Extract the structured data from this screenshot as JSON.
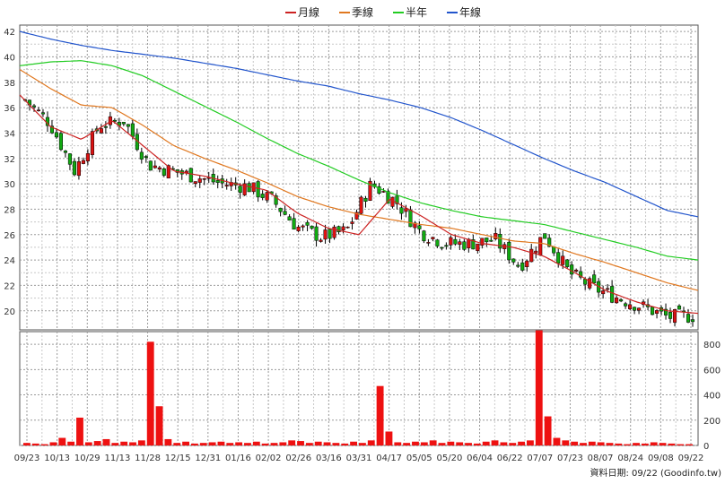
{
  "chart_data": {
    "type": "candlestick",
    "grid": true,
    "legend_position": "top-center",
    "legend": [
      {
        "name": "月線",
        "color": "#cc2222"
      },
      {
        "name": "季線",
        "color": "#e07820"
      },
      {
        "name": "半年",
        "color": "#22cc22"
      },
      {
        "name": "年線",
        "color": "#2255cc"
      }
    ],
    "x_tick_labels": [
      "09/23",
      "10/13",
      "10/29",
      "11/13",
      "11/28",
      "12/15",
      "12/31",
      "01/16",
      "02/02",
      "02/26",
      "03/16",
      "03/31",
      "04/17",
      "05/05",
      "05/20",
      "06/04",
      "06/22",
      "07/07",
      "07/23",
      "08/07",
      "08/24",
      "09/08",
      "09/22"
    ],
    "price_axis": {
      "ylim": [
        18.5,
        42.5
      ],
      "ticks": [
        20,
        22,
        24,
        26,
        28,
        30,
        32,
        34,
        36,
        38,
        40,
        42
      ]
    },
    "volume_axis": {
      "ylim": [
        0,
        900
      ],
      "ticks": [
        0,
        200,
        400,
        600,
        800
      ]
    },
    "ma_lines": {
      "年線": [
        42.0,
        41.4,
        40.9,
        40.5,
        40.2,
        39.9,
        39.5,
        39.1,
        38.6,
        38.1,
        37.7,
        37.1,
        36.6,
        36.0,
        35.2,
        34.2,
        33.1,
        32.0,
        31.0,
        30.1,
        29.0,
        27.9,
        27.4
      ],
      "半年": [
        39.3,
        39.6,
        39.7,
        39.3,
        38.5,
        37.3,
        36.1,
        34.9,
        33.6,
        32.4,
        31.4,
        30.3,
        29.3,
        28.5,
        27.9,
        27.4,
        27.1,
        26.8,
        26.2,
        25.6,
        25.0,
        24.3,
        24.0
      ],
      "季線": [
        39.0,
        37.5,
        36.2,
        36.0,
        34.6,
        33.0,
        32.0,
        31.1,
        30.1,
        29.0,
        28.2,
        27.6,
        27.2,
        26.8,
        26.5,
        26.0,
        25.5,
        25.3,
        24.5,
        23.8,
        23.0,
        22.2,
        21.6
      ],
      "月線": [
        37.0,
        34.5,
        33.5,
        35.0,
        33.0,
        31.0,
        30.6,
        30.0,
        29.5,
        27.7,
        26.5,
        26.0,
        28.8,
        27.5,
        26.0,
        25.3,
        25.0,
        24.3,
        23.0,
        21.6,
        20.7,
        20.0,
        19.8
      ]
    },
    "close_prices": [
      36.6,
      34.8,
      31.0,
      34.6,
      35.0,
      31.5,
      31.0,
      30.5,
      30.0,
      29.8,
      28.7,
      26.6,
      25.8,
      26.3,
      30.0,
      28.6,
      26.2,
      25.3,
      25.3,
      25.6,
      23.5,
      26.0,
      23.0,
      21.8,
      21.0,
      20.3,
      19.5,
      19.6
    ],
    "volume_values": [
      20,
      15,
      10,
      25,
      60,
      30,
      220,
      25,
      35,
      50,
      20,
      30,
      25,
      40,
      820,
      310,
      50,
      20,
      30,
      15,
      20,
      25,
      30,
      20,
      25,
      20,
      30,
      15,
      20,
      25,
      40,
      35,
      20,
      30,
      25,
      20,
      15,
      30,
      20,
      40,
      470,
      110,
      25,
      20,
      30,
      25,
      40,
      20,
      30,
      25,
      20,
      15,
      30,
      40,
      25,
      20,
      30,
      40,
      910,
      230,
      60,
      40,
      30,
      20,
      30,
      25,
      20,
      15,
      10,
      20,
      15,
      25,
      20,
      15,
      10,
      10
    ],
    "volume_labels": [
      "800",
      "600",
      "400",
      "200",
      "0"
    ],
    "price_labels": [
      "42",
      "40",
      "38",
      "36",
      "34",
      "32",
      "30",
      "28",
      "26",
      "24",
      "22",
      "20"
    ]
  },
  "source_note": "資料日期: 09/22  (Goodinfo.tw)"
}
